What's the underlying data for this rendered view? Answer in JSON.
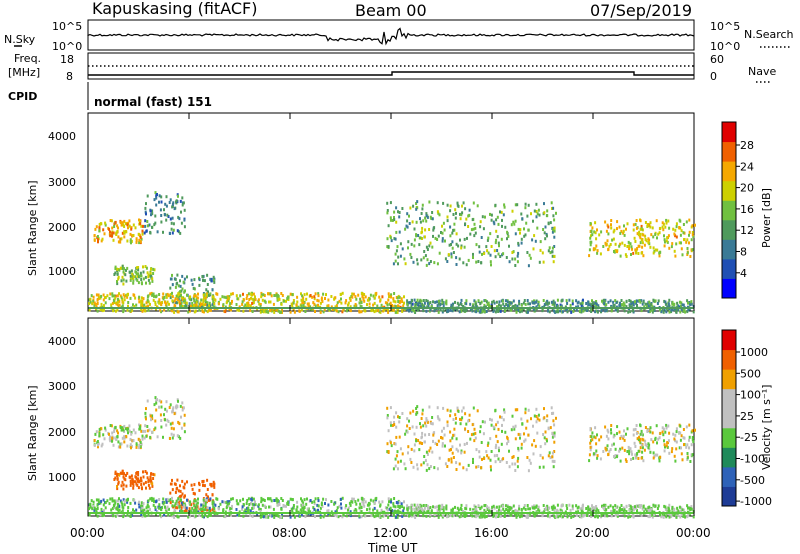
{
  "header": {
    "station": "Kapuskasing (fitACF)",
    "beam": "Beam 00",
    "date": "07/Sep/2019"
  },
  "noise_panel": {
    "left_label": "N.Sky",
    "left_ticks": [
      "10^5",
      "10^0"
    ],
    "right_label": "N.Search",
    "right_ticks": [
      "10^5",
      "10^0"
    ]
  },
  "freq_panel": {
    "left_label_line1": "Freq.",
    "left_label_line2": "[MHz]",
    "left_ticks": [
      "18",
      "8"
    ],
    "right_label": "Nave",
    "right_ticks": [
      "60",
      "0"
    ]
  },
  "cpid_panel": {
    "label": "CPID",
    "mode_text": "normal (fast) 151"
  },
  "time_axis": {
    "label": "Time UT",
    "ticks": [
      "00:00",
      "04:00",
      "08:00",
      "12:00",
      "16:00",
      "20:00",
      "00:00"
    ]
  },
  "power_panel": {
    "ylabel": "Slant Range [km]",
    "yticks": [
      "4000",
      "3000",
      "2000",
      "1000"
    ],
    "colorbar_label": "Power [dB]",
    "colorbar_ticks": [
      "28",
      "24",
      "20",
      "16",
      "12",
      "8",
      "4"
    ],
    "colors": [
      "#0000ff",
      "#1f4fb4",
      "#3a7a96",
      "#4f9a5c",
      "#70c040",
      "#cdd000",
      "#f5a800",
      "#f06000",
      "#e00000"
    ]
  },
  "velocity_panel": {
    "ylabel": "Slant Range [km]",
    "yticks": [
      "4000",
      "3000",
      "2000",
      "1000"
    ],
    "colorbar_label": "Velocity [m s⁻¹]",
    "colorbar_ticks": [
      "1000",
      "500",
      "100",
      "25",
      "-25",
      "-100",
      "-500",
      "-1000"
    ],
    "colors": [
      "#1e3c96",
      "#2e62b8",
      "#1f8a5a",
      "#5ac83c",
      "#c0c0c0",
      "#c0c0c0",
      "#f0a000",
      "#f06000",
      "#e00000"
    ]
  },
  "chart_data": {
    "type": "heatmap",
    "time_range_hours": [
      0,
      24
    ],
    "range_limits_km": [
      180,
      4500
    ],
    "scatter_regions": [
      {
        "name": "early-echo",
        "t": [
          0.2,
          2.2
        ],
        "range_km": [
          1700,
          2200
        ],
        "power_db": 20,
        "velocity": 10
      },
      {
        "name": "early-low",
        "t": [
          1.0,
          2.6
        ],
        "range_km": [
          800,
          1200
        ],
        "power_db": 14,
        "velocity": -150
      },
      {
        "name": "rising-arc",
        "t": [
          2.2,
          3.8
        ],
        "range_km": [
          1900,
          2800
        ],
        "power_db": 8,
        "velocity": 5
      },
      {
        "name": "mid-low",
        "t": [
          3.2,
          5.0
        ],
        "range_km": [
          300,
          1000
        ],
        "power_db": 10,
        "velocity": -200
      },
      {
        "name": "ground",
        "t": [
          0.0,
          12.5
        ],
        "range_km": [
          180,
          600
        ],
        "power_db": 18,
        "velocity": 60
      },
      {
        "name": "late-ground",
        "t": [
          12.5,
          24.0
        ],
        "range_km": [
          180,
          450
        ],
        "power_db": 10,
        "velocity": 40
      },
      {
        "name": "evening-arc",
        "t": [
          11.8,
          18.5
        ],
        "range_km": [
          1200,
          2600
        ],
        "power_db": 12,
        "velocity": -10
      },
      {
        "name": "late-echo",
        "t": [
          19.8,
          24.0
        ],
        "range_km": [
          1400,
          2200
        ],
        "power_db": 18,
        "velocity": 5
      }
    ]
  }
}
